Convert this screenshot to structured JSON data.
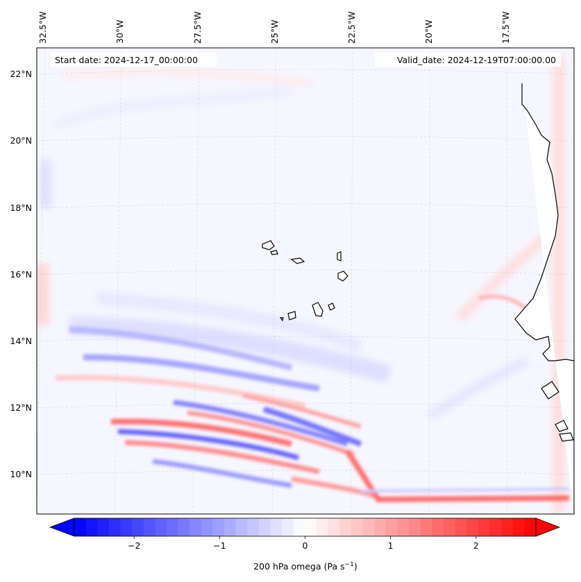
{
  "map": {
    "start_date": "Start date: 2024-12-17_00:00:00",
    "valid_date": "Valid_date: 2024-12-19T07:00:00.00",
    "lon_labels": [
      "32.5°W",
      "30°W",
      "27.5°W",
      "25°W",
      "22.5°W",
      "20°W",
      "17.5°W"
    ],
    "lat_labels": [
      "22°N",
      "20°N",
      "18°N",
      "16°N",
      "14°N",
      "12°N",
      "10°N"
    ],
    "variable": "200 hPa omega",
    "units_prefix": "(Pa s",
    "units_exp": "−1",
    "units_suffix": ")"
  },
  "colorbar": {
    "min": -2.7,
    "max": 2.7,
    "ticks": [
      -2,
      -1,
      0,
      1,
      2
    ],
    "tick_labels": [
      "−2",
      "−1",
      "0",
      "1",
      "2"
    ],
    "levels": 40,
    "low_color": "#0000ff",
    "mid_color": "#ffffff",
    "high_color": "#ff0000",
    "extend": "both"
  }
}
